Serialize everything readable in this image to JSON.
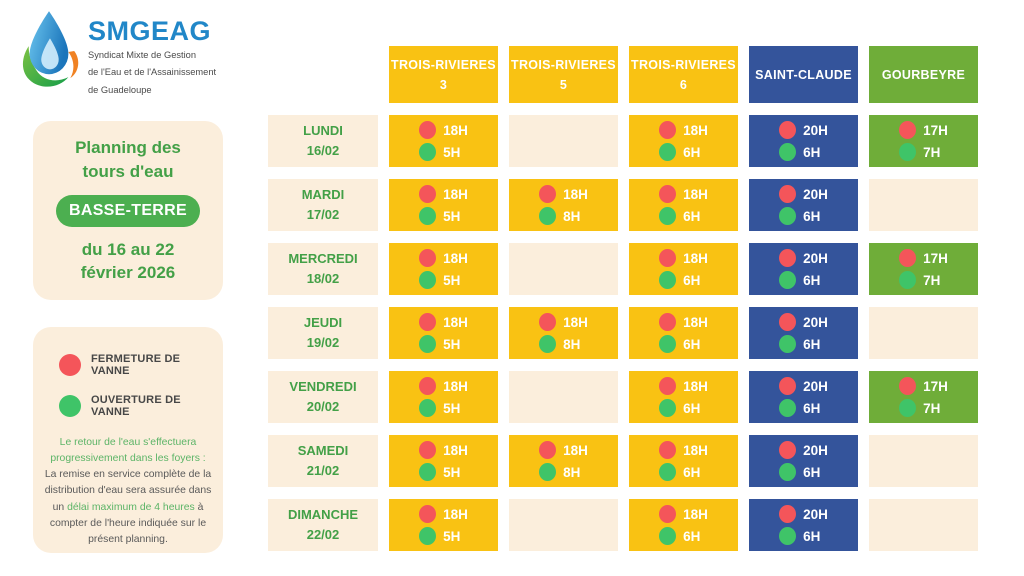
{
  "logo": {
    "name": "SMGEAG",
    "subtitle_lines": [
      "Syndicat Mixte de Gestion",
      "de l'Eau et de l'Assainissement",
      "de Guadeloupe"
    ]
  },
  "info_panel": {
    "title_line1": "Planning des",
    "title_line2": "tours d'eau",
    "badge": "BASSE-TERRE",
    "date_line1": "du 16 au 22",
    "date_line2": "février 2026"
  },
  "legend": {
    "closure_label": "FERMETURE DE VANNE",
    "opening_label": "OUVERTURE DE VANNE",
    "note": {
      "part1": "Le retour de l'eau s'effectuera progressivement dans les foyers :",
      "part2": "La remise en service complète de la distribution d'eau sera assurée dans un ",
      "part3": "délai maximum de 4 heures",
      "part4": " à compter de l'heure indiquée sur le présent planning."
    }
  },
  "colors": {
    "yellow_column": "#F9C213",
    "blue_column": "#34549B",
    "green_column": "#6FAD39",
    "cream": "#FBEEDC",
    "red_dot": "#F4555A",
    "green_dot": "#3FC468",
    "green_text": "#43A047",
    "logo_blue": "#2187C8"
  },
  "schedule": {
    "columns": [
      {
        "label_line1": "TROIS-RIVIERES",
        "label_line2": "3",
        "color": "yellow"
      },
      {
        "label_line1": "TROIS-RIVIERES",
        "label_line2": "5",
        "color": "yellow"
      },
      {
        "label_line1": "TROIS-RIVIERES",
        "label_line2": "6",
        "color": "yellow"
      },
      {
        "label_line1": "SAINT-CLAUDE",
        "label_line2": "",
        "color": "blue"
      },
      {
        "label_line1": "GOURBEYRE",
        "label_line2": "",
        "color": "green"
      }
    ],
    "rows": [
      {
        "day": "LUNDI",
        "date": "16/02",
        "cells": [
          {
            "close": "18H",
            "open": "5H"
          },
          null,
          {
            "close": "18H",
            "open": "6H"
          },
          {
            "close": "20H",
            "open": "6H"
          },
          {
            "close": "17H",
            "open": "7H"
          }
        ]
      },
      {
        "day": "MARDI",
        "date": "17/02",
        "cells": [
          {
            "close": "18H",
            "open": "5H"
          },
          {
            "close": "18H",
            "open": "8H"
          },
          {
            "close": "18H",
            "open": "6H"
          },
          {
            "close": "20H",
            "open": "6H"
          },
          null
        ]
      },
      {
        "day": "MERCREDI",
        "date": "18/02",
        "cells": [
          {
            "close": "18H",
            "open": "5H"
          },
          null,
          {
            "close": "18H",
            "open": "6H"
          },
          {
            "close": "20H",
            "open": "6H"
          },
          {
            "close": "17H",
            "open": "7H"
          }
        ]
      },
      {
        "day": "JEUDI",
        "date": "19/02",
        "cells": [
          {
            "close": "18H",
            "open": "5H"
          },
          {
            "close": "18H",
            "open": "8H"
          },
          {
            "close": "18H",
            "open": "6H"
          },
          {
            "close": "20H",
            "open": "6H"
          },
          null
        ]
      },
      {
        "day": "VENDREDI",
        "date": "20/02",
        "cells": [
          {
            "close": "18H",
            "open": "5H"
          },
          null,
          {
            "close": "18H",
            "open": "6H"
          },
          {
            "close": "20H",
            "open": "6H"
          },
          {
            "close": "17H",
            "open": "7H"
          }
        ]
      },
      {
        "day": "SAMEDI",
        "date": "21/02",
        "cells": [
          {
            "close": "18H",
            "open": "5H"
          },
          {
            "close": "18H",
            "open": "8H"
          },
          {
            "close": "18H",
            "open": "6H"
          },
          {
            "close": "20H",
            "open": "6H"
          },
          null
        ]
      },
      {
        "day": "DIMANCHE",
        "date": "22/02",
        "cells": [
          {
            "close": "18H",
            "open": "5H"
          },
          null,
          {
            "close": "18H",
            "open": "6H"
          },
          {
            "close": "20H",
            "open": "6H"
          },
          null
        ]
      }
    ]
  }
}
